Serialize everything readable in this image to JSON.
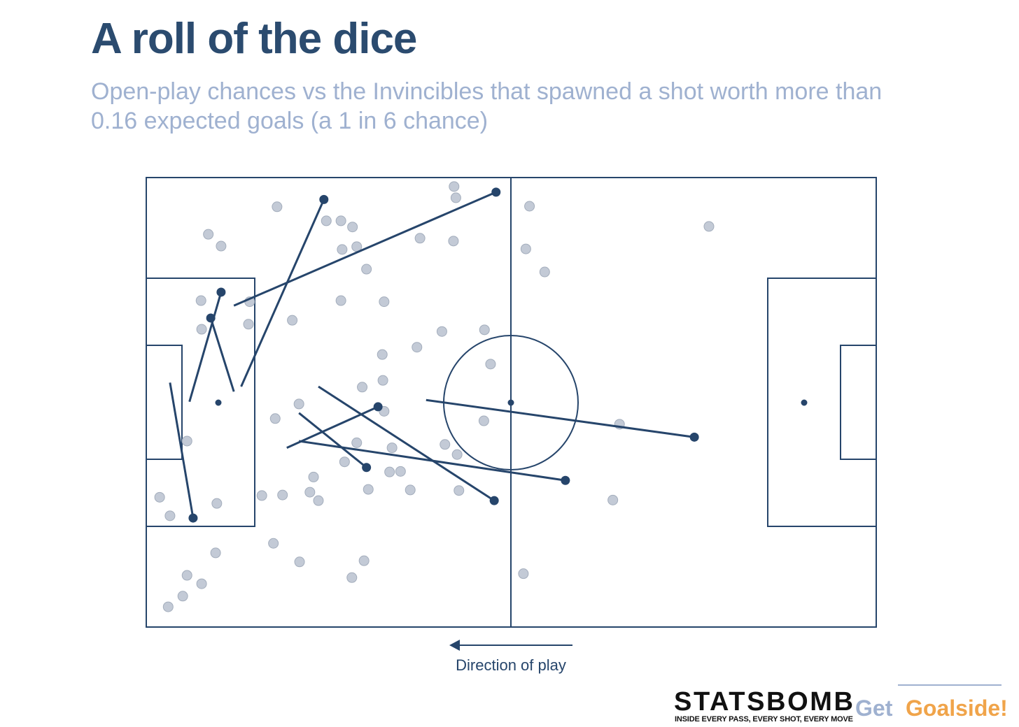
{
  "chart_data": {
    "type": "pitch",
    "title": "A roll of the dice",
    "subtitle": "Open-play chances vs the Invincibles that spawned a shot worth more than 0.16 expected goals (a 1 in 6 chance)",
    "annotation": "Direction of play",
    "xlim": [
      0,
      120
    ],
    "ylim": [
      0,
      80
    ],
    "invert_y": true,
    "points": {
      "color": "#c3cad6",
      "x": [
        50.6,
        50.9,
        21.5,
        63.0,
        29.6,
        32.0,
        33.9,
        92.5,
        10.2,
        12.3,
        45.0,
        50.5,
        32.2,
        34.6,
        62.4,
        36.2,
        65.5,
        9.0,
        17.0,
        32.0,
        39.1,
        24.0,
        16.8,
        9.1,
        48.6,
        55.6,
        44.5,
        38.8,
        56.6,
        38.9,
        35.5,
        25.1,
        39.1,
        21.2,
        55.5,
        77.8,
        6.7,
        34.6,
        40.4,
        49.1,
        51.1,
        32.6,
        40.0,
        41.8,
        27.5,
        36.5,
        43.4,
        51.4,
        2.2,
        19.0,
        22.4,
        26.9,
        28.3,
        11.6,
        76.7,
        3.9,
        20.9,
        11.4,
        25.2,
        35.8,
        6.7,
        33.8,
        62.0,
        9.1,
        6.0,
        3.6
      ],
      "y": [
        1.6,
        3.6,
        5.2,
        5.1,
        7.7,
        7.7,
        8.8,
        8.7,
        10.1,
        12.2,
        10.8,
        11.3,
        12.8,
        12.3,
        12.7,
        16.3,
        16.8,
        21.9,
        22.1,
        21.9,
        22.1,
        25.4,
        26.1,
        27.0,
        27.4,
        27.1,
        30.2,
        31.5,
        33.2,
        36.1,
        37.3,
        40.3,
        41.6,
        42.9,
        43.3,
        43.9,
        46.9,
        47.2,
        48.1,
        47.5,
        49.3,
        50.6,
        52.4,
        52.3,
        53.3,
        55.5,
        55.6,
        55.7,
        56.9,
        56.6,
        56.5,
        56.0,
        57.5,
        58.0,
        57.4,
        60.2,
        65.1,
        66.8,
        68.4,
        68.2,
        70.8,
        71.2,
        70.5,
        72.3,
        74.5,
        76.4
      ]
    },
    "passes": {
      "color": "#26456b",
      "x_start": [
        14.4,
        15.6,
        7.1,
        14.4,
        3.9,
        23.1,
        25.1,
        28.3,
        25.1,
        46.0
      ],
      "y_start": [
        22.8,
        37.2,
        39.9,
        38.1,
        36.5,
        48.1,
        41.9,
        37.2,
        46.9,
        39.6
      ],
      "x_end": [
        57.5,
        29.2,
        12.3,
        10.6,
        7.7,
        38.1,
        36.2,
        57.2,
        68.9,
        90.1
      ],
      "y_end": [
        2.6,
        3.9,
        20.4,
        25.0,
        60.6,
        40.8,
        51.6,
        57.5,
        53.9,
        46.2
      ]
    }
  },
  "branding": {
    "statsbomb": "STATSBOMB",
    "tagline": "INSIDE EVERY PASS, EVERY SHOT, EVERY MOVE",
    "get": "Get",
    "goalside": "Goalside!"
  }
}
